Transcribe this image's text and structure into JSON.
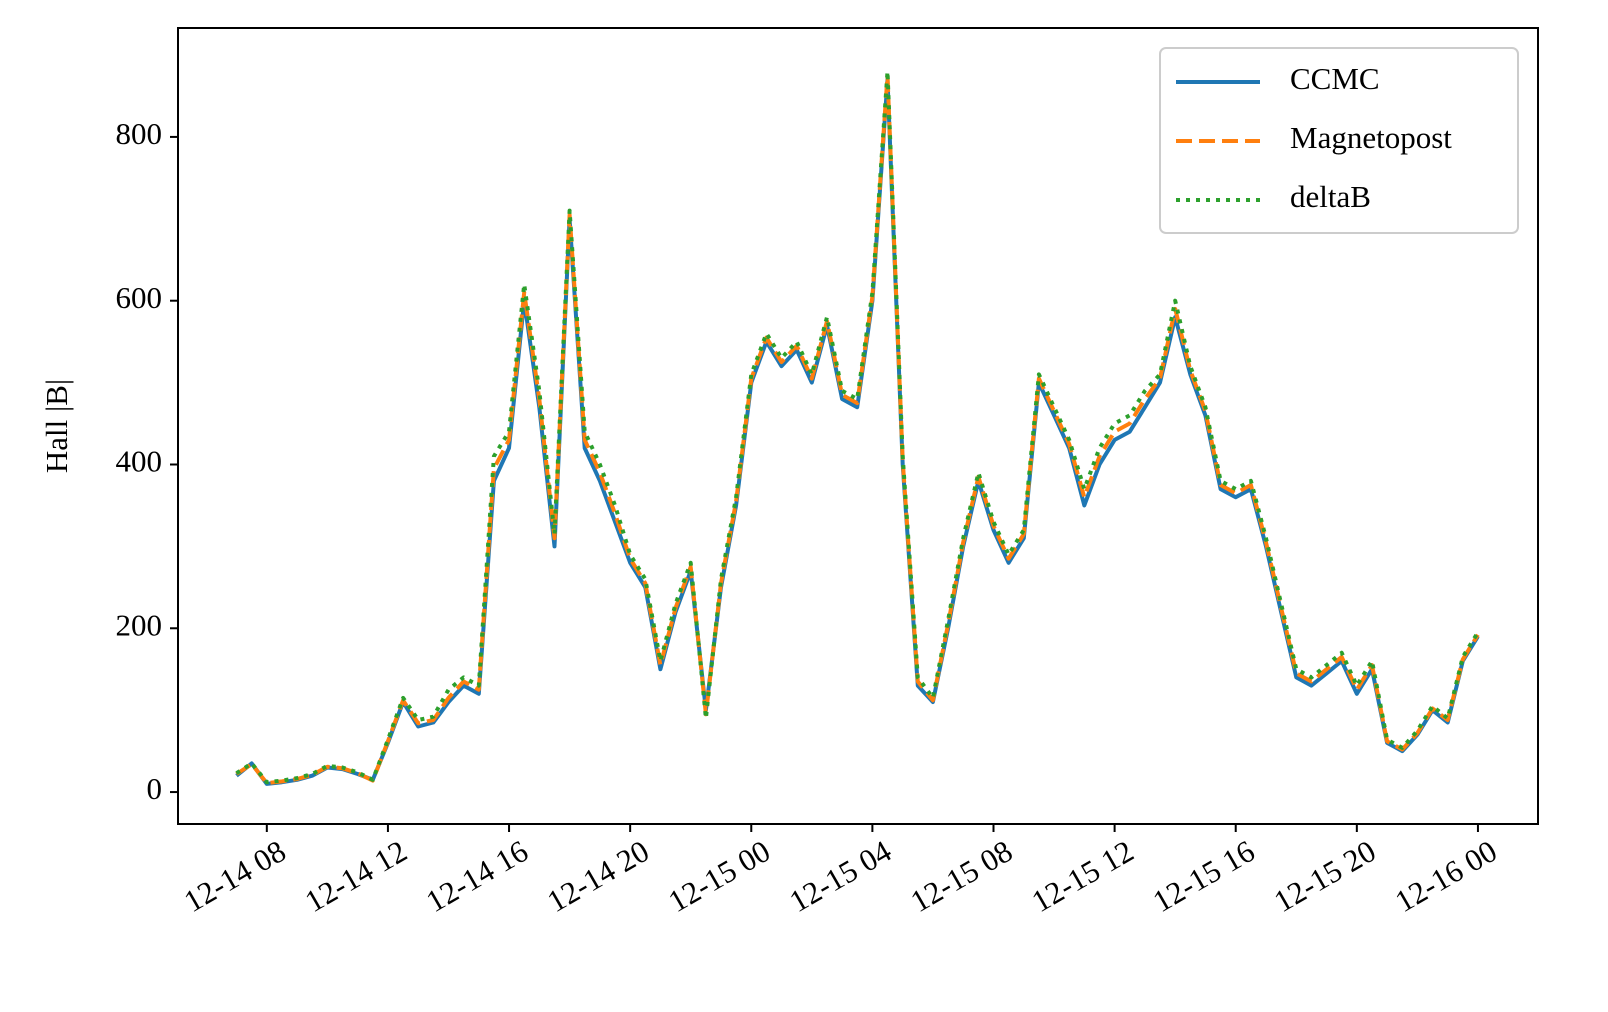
{
  "chart_data": {
    "type": "line",
    "ylabel": "Hall |B|",
    "x": [
      "12-14 07:00",
      "12-14 07:30",
      "12-14 08:00",
      "12-14 08:30",
      "12-14 09:00",
      "12-14 09:30",
      "12-14 10:00",
      "12-14 10:30",
      "12-14 11:00",
      "12-14 11:30",
      "12-14 12:00",
      "12-14 12:30",
      "12-14 13:00",
      "12-14 13:30",
      "12-14 14:00",
      "12-14 14:30",
      "12-14 15:00",
      "12-14 15:30",
      "12-14 16:00",
      "12-14 16:30",
      "12-14 17:00",
      "12-14 17:30",
      "12-14 18:00",
      "12-14 18:30",
      "12-14 19:00",
      "12-14 19:30",
      "12-14 20:00",
      "12-14 20:30",
      "12-14 21:00",
      "12-14 21:30",
      "12-14 22:00",
      "12-14 22:30",
      "12-14 23:00",
      "12-14 23:30",
      "12-15 00:00",
      "12-15 00:30",
      "12-15 01:00",
      "12-15 01:30",
      "12-15 02:00",
      "12-15 02:30",
      "12-15 03:00",
      "12-15 03:30",
      "12-15 04:00",
      "12-15 04:30",
      "12-15 05:00",
      "12-15 05:30",
      "12-15 06:00",
      "12-15 06:30",
      "12-15 07:00",
      "12-15 07:30",
      "12-15 08:00",
      "12-15 08:30",
      "12-15 09:00",
      "12-15 09:30",
      "12-15 10:00",
      "12-15 10:30",
      "12-15 11:00",
      "12-15 11:30",
      "12-15 12:00",
      "12-15 12:30",
      "12-15 13:00",
      "12-15 13:30",
      "12-15 14:00",
      "12-15 14:30",
      "12-15 15:00",
      "12-15 15:30",
      "12-15 16:00",
      "12-15 16:30",
      "12-15 17:00",
      "12-15 17:30",
      "12-15 18:00",
      "12-15 18:30",
      "12-15 19:00",
      "12-15 19:30",
      "12-15 20:00",
      "12-15 20:30",
      "12-15 21:00",
      "12-15 21:30",
      "12-15 22:00",
      "12-15 22:30",
      "12-15 23:00",
      "12-15 23:30",
      "12-16 00:00"
    ],
    "series": [
      {
        "name": "CCMC",
        "color": "#1f77b4",
        "dash": "solid",
        "values": [
          20,
          35,
          10,
          12,
          15,
          20,
          30,
          28,
          22,
          15,
          60,
          110,
          80,
          85,
          110,
          130,
          120,
          380,
          420,
          600,
          470,
          300,
          700,
          420,
          380,
          330,
          280,
          250,
          150,
          220,
          270,
          100,
          250,
          350,
          500,
          550,
          520,
          540,
          500,
          570,
          480,
          470,
          600,
          870,
          400,
          130,
          110,
          200,
          300,
          380,
          320,
          280,
          310,
          500,
          460,
          420,
          350,
          400,
          430,
          440,
          470,
          500,
          580,
          510,
          460,
          370,
          360,
          370,
          300,
          220,
          140,
          130,
          145,
          160,
          120,
          150,
          60,
          50,
          70,
          100,
          85,
          160,
          190
        ]
      },
      {
        "name": "Magnetopost",
        "color": "#ff7f0e",
        "dash": "dashed",
        "values": [
          22,
          34,
          11,
          13,
          16,
          21,
          31,
          29,
          23,
          14,
          62,
          112,
          84,
          88,
          115,
          135,
          125,
          395,
          430,
          610,
          480,
          310,
          705,
          430,
          390,
          340,
          285,
          255,
          155,
          225,
          275,
          95,
          255,
          355,
          505,
          555,
          525,
          545,
          505,
          575,
          485,
          475,
          605,
          875,
          405,
          135,
          112,
          205,
          305,
          385,
          325,
          285,
          315,
          505,
          465,
          425,
          360,
          410,
          440,
          450,
          480,
          505,
          590,
          515,
          465,
          375,
          365,
          375,
          305,
          225,
          145,
          135,
          150,
          165,
          125,
          155,
          62,
          52,
          72,
          102,
          88,
          162,
          192
        ]
      },
      {
        "name": "deltaB",
        "color": "#2ca02c",
        "dash": "dotted",
        "values": [
          23,
          35,
          12,
          14,
          17,
          22,
          32,
          30,
          24,
          15,
          64,
          115,
          88,
          92,
          125,
          140,
          130,
          410,
          440,
          620,
          490,
          315,
          710,
          440,
          400,
          350,
          290,
          260,
          160,
          230,
          280,
          90,
          260,
          360,
          510,
          560,
          530,
          550,
          510,
          580,
          490,
          480,
          610,
          880,
          410,
          140,
          115,
          210,
          310,
          390,
          330,
          290,
          320,
          510,
          470,
          430,
          370,
          420,
          450,
          460,
          490,
          510,
          600,
          520,
          470,
          380,
          370,
          380,
          310,
          230,
          150,
          140,
          155,
          170,
          130,
          160,
          64,
          54,
          75,
          105,
          90,
          165,
          195
        ]
      }
    ],
    "xlim": [
      "12-14 05:04",
      "12-16 01:59"
    ],
    "xticks": [
      {
        "value": "12-14 08:00",
        "label": "12-14 08"
      },
      {
        "value": "12-14 12:00",
        "label": "12-14 12"
      },
      {
        "value": "12-14 16:00",
        "label": "12-14 16"
      },
      {
        "value": "12-14 20:00",
        "label": "12-14 20"
      },
      {
        "value": "12-15 00:00",
        "label": "12-15 00"
      },
      {
        "value": "12-15 04:00",
        "label": "12-15 04"
      },
      {
        "value": "12-15 08:00",
        "label": "12-15 08"
      },
      {
        "value": "12-15 12:00",
        "label": "12-15 12"
      },
      {
        "value": "12-15 16:00",
        "label": "12-15 16"
      },
      {
        "value": "12-15 20:00",
        "label": "12-15 20"
      },
      {
        "value": "12-16 00:00",
        "label": "12-16 00"
      }
    ],
    "ylim": [
      -39,
      933
    ],
    "yticks": [
      0,
      200,
      400,
      600,
      800
    ],
    "legend": "upper right"
  }
}
